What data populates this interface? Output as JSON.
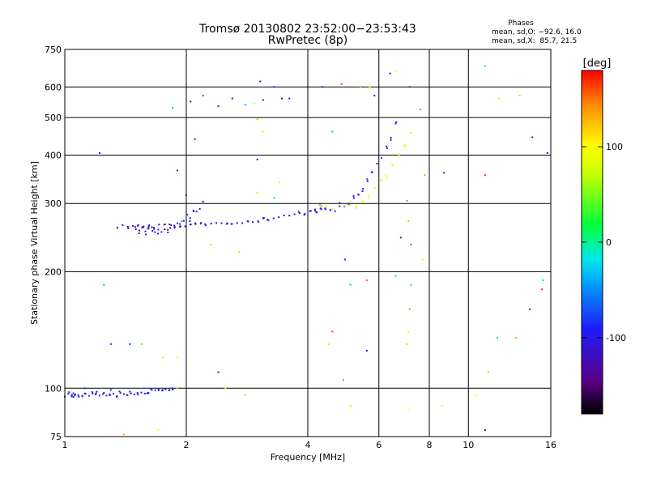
{
  "chart_data": {
    "type": "scatter",
    "title": "Tromsø 20130802 23:52:00−23:53:43",
    "subtitle": "RwPretec (8p)",
    "xlabel": "Frequency [MHz]",
    "ylabel": "Stationary phase Virtual Height [km]",
    "x_scale": "log",
    "y_scale": "log",
    "xlim": [
      1,
      16
    ],
    "ylim": [
      75,
      750
    ],
    "x_ticks": [
      1,
      2,
      4,
      6,
      8,
      10,
      16
    ],
    "y_ticks": [
      75,
      100,
      200,
      300,
      400,
      500,
      600,
      750
    ],
    "x_grid": [
      1,
      2,
      4,
      6,
      8,
      10,
      16
    ],
    "y_grid": [
      100,
      200,
      300,
      400,
      500,
      600,
      750
    ],
    "grid": true,
    "stats": {
      "heading": "Phases",
      "line_o": "mean, sd,O: −92.6, 16.0",
      "line_x": "mean, sd,X:  85.7, 21.5"
    },
    "colorbar": {
      "label": "[deg]",
      "range": [
        -180,
        180
      ],
      "ticks": [
        100,
        0,
        -100
      ]
    },
    "traces": [
      {
        "name": "O",
        "phase": -95,
        "spread": 12,
        "count": 32,
        "f_range": [
          1.0,
          1.85
        ],
        "h_range": [
          96,
          100
        ],
        "ripple": 2
      },
      {
        "name": "O",
        "phase": -100,
        "spread": 18,
        "count": 22,
        "f_range": [
          1.5,
          2.2
        ],
        "h_range": [
          255,
          300
        ],
        "ripple": 14
      },
      {
        "name": "O",
        "phase": -110,
        "spread": 12,
        "count": 40,
        "f_range": [
          1.35,
          4.3
        ],
        "h_range": [
          262,
          290
        ],
        "ripple": 5
      },
      {
        "name": "O",
        "phase": -90,
        "spread": 12,
        "count": 18,
        "f_range": [
          4.2,
          6.6
        ],
        "h_range": [
          290,
          480
        ],
        "ripple": 12
      },
      {
        "name": "X",
        "phase": 85,
        "spread": 20,
        "count": 16,
        "f_range": [
          4.3,
          7.2
        ],
        "h_range": [
          292,
          450
        ],
        "ripple": 15
      }
    ],
    "points": [
      {
        "f": 1.05,
        "h": 97,
        "p": -95
      },
      {
        "f": 1.12,
        "h": 100,
        "p": -90
      },
      {
        "f": 1.2,
        "h": 98,
        "p": -85
      },
      {
        "f": 1.3,
        "h": 99,
        "p": -100
      },
      {
        "f": 1.45,
        "h": 98,
        "p": -92
      },
      {
        "f": 1.6,
        "h": 97,
        "p": -98
      },
      {
        "f": 1.75,
        "h": 99,
        "p": -88
      },
      {
        "f": 1.85,
        "h": 100,
        "p": -90
      },
      {
        "f": 1.22,
        "h": 405,
        "p": -105
      },
      {
        "f": 1.25,
        "h": 185,
        "p": -40
      },
      {
        "f": 1.3,
        "h": 130,
        "p": -100
      },
      {
        "f": 1.45,
        "h": 130,
        "p": -90
      },
      {
        "f": 1.55,
        "h": 130,
        "p": 40
      },
      {
        "f": 1.75,
        "h": 120,
        "p": 70
      },
      {
        "f": 1.9,
        "h": 100,
        "p": 60
      },
      {
        "f": 1.9,
        "h": 120,
        "p": 100
      },
      {
        "f": 1.85,
        "h": 530,
        "p": -40
      },
      {
        "f": 1.9,
        "h": 365,
        "p": -110
      },
      {
        "f": 2.05,
        "h": 550,
        "p": -120
      },
      {
        "f": 2.1,
        "h": 440,
        "p": -100
      },
      {
        "f": 2.2,
        "h": 570,
        "p": -60
      },
      {
        "f": 2.4,
        "h": 535,
        "p": -110
      },
      {
        "f": 2.6,
        "h": 560,
        "p": -120
      },
      {
        "f": 2.8,
        "h": 540,
        "p": -30
      },
      {
        "f": 2.95,
        "h": 545,
        "p": 80
      },
      {
        "f": 3.05,
        "h": 620,
        "p": -120
      },
      {
        "f": 3.1,
        "h": 555,
        "p": -110
      },
      {
        "f": 3.3,
        "h": 600,
        "p": -100
      },
      {
        "f": 3.45,
        "h": 560,
        "p": -110
      },
      {
        "f": 3.6,
        "h": 560,
        "p": -105
      },
      {
        "f": 3.0,
        "h": 390,
        "p": -110
      },
      {
        "f": 3.0,
        "h": 495,
        "p": 130
      },
      {
        "f": 3.1,
        "h": 460,
        "p": 110
      },
      {
        "f": 3.4,
        "h": 340,
        "p": 90
      },
      {
        "f": 4.0,
        "h": 600,
        "p": -120
      },
      {
        "f": 4.35,
        "h": 600,
        "p": -115
      },
      {
        "f": 4.6,
        "h": 460,
        "p": -30
      },
      {
        "f": 4.85,
        "h": 610,
        "p": 160
      },
      {
        "f": 5.4,
        "h": 600,
        "p": 140
      },
      {
        "f": 5.7,
        "h": 600,
        "p": 90
      },
      {
        "f": 5.85,
        "h": 570,
        "p": -110
      },
      {
        "f": 6.4,
        "h": 650,
        "p": -100
      },
      {
        "f": 6.6,
        "h": 660,
        "p": 100
      },
      {
        "f": 7.15,
        "h": 600,
        "p": -120
      },
      {
        "f": 7.6,
        "h": 525,
        "p": 150
      },
      {
        "f": 7.8,
        "h": 355,
        "p": 140
      },
      {
        "f": 8.7,
        "h": 360,
        "p": -120
      },
      {
        "f": 11.0,
        "h": 680,
        "p": -20
      },
      {
        "f": 11.0,
        "h": 355,
        "p": 170
      },
      {
        "f": 11.9,
        "h": 560,
        "p": 110
      },
      {
        "f": 13.4,
        "h": 570,
        "p": 120
      },
      {
        "f": 14.4,
        "h": 445,
        "p": -110
      },
      {
        "f": 15.7,
        "h": 405,
        "p": -120
      },
      {
        "f": 4.95,
        "h": 215,
        "p": -110
      },
      {
        "f": 5.1,
        "h": 185,
        "p": -30
      },
      {
        "f": 5.6,
        "h": 190,
        "p": 160
      },
      {
        "f": 5.6,
        "h": 125,
        "p": -115
      },
      {
        "f": 4.6,
        "h": 140,
        "p": 160
      },
      {
        "f": 4.5,
        "h": 130,
        "p": 120
      },
      {
        "f": 4.9,
        "h": 105,
        "p": 150
      },
      {
        "f": 5.1,
        "h": 90,
        "p": 110
      },
      {
        "f": 6.8,
        "h": 245,
        "p": -140
      },
      {
        "f": 6.6,
        "h": 195,
        "p": 20
      },
      {
        "f": 7.05,
        "h": 305,
        "p": 150
      },
      {
        "f": 7.1,
        "h": 270,
        "p": 130
      },
      {
        "f": 7.2,
        "h": 235,
        "p": 160
      },
      {
        "f": 7.15,
        "h": 160,
        "p": 140
      },
      {
        "f": 7.1,
        "h": 140,
        "p": 110
      },
      {
        "f": 7.05,
        "h": 130,
        "p": 120
      },
      {
        "f": 7.2,
        "h": 185,
        "p": -30
      },
      {
        "f": 7.1,
        "h": 88,
        "p": 100
      },
      {
        "f": 7.7,
        "h": 215,
        "p": 90
      },
      {
        "f": 8.6,
        "h": 90,
        "p": 100
      },
      {
        "f": 10.4,
        "h": 96,
        "p": 100
      },
      {
        "f": 11.2,
        "h": 110,
        "p": 130
      },
      {
        "f": 11.0,
        "h": 78,
        "p": -150
      },
      {
        "f": 11.8,
        "h": 135,
        "p": -30
      },
      {
        "f": 13.1,
        "h": 135,
        "p": 140
      },
      {
        "f": 14.2,
        "h": 160,
        "p": -110
      },
      {
        "f": 15.2,
        "h": 180,
        "p": 170
      },
      {
        "f": 15.3,
        "h": 190,
        "p": -30
      },
      {
        "f": 1.4,
        "h": 76,
        "p": 140
      },
      {
        "f": 1.7,
        "h": 78,
        "p": 100
      },
      {
        "f": 2.4,
        "h": 110,
        "p": -100
      },
      {
        "f": 2.5,
        "h": 100,
        "p": 100
      },
      {
        "f": 2.8,
        "h": 96,
        "p": 120
      },
      {
        "f": 2.7,
        "h": 225,
        "p": 60
      },
      {
        "f": 2.3,
        "h": 235,
        "p": 120
      },
      {
        "f": 3.0,
        "h": 320,
        "p": 60
      },
      {
        "f": 3.3,
        "h": 310,
        "p": -30
      },
      {
        "f": 1.95,
        "h": 270,
        "p": -40
      },
      {
        "f": 2.0,
        "h": 315,
        "p": -130
      },
      {
        "f": 1.05,
        "h": 95,
        "p": -90
      },
      {
        "f": 1.08,
        "h": 96,
        "p": -100
      }
    ]
  }
}
